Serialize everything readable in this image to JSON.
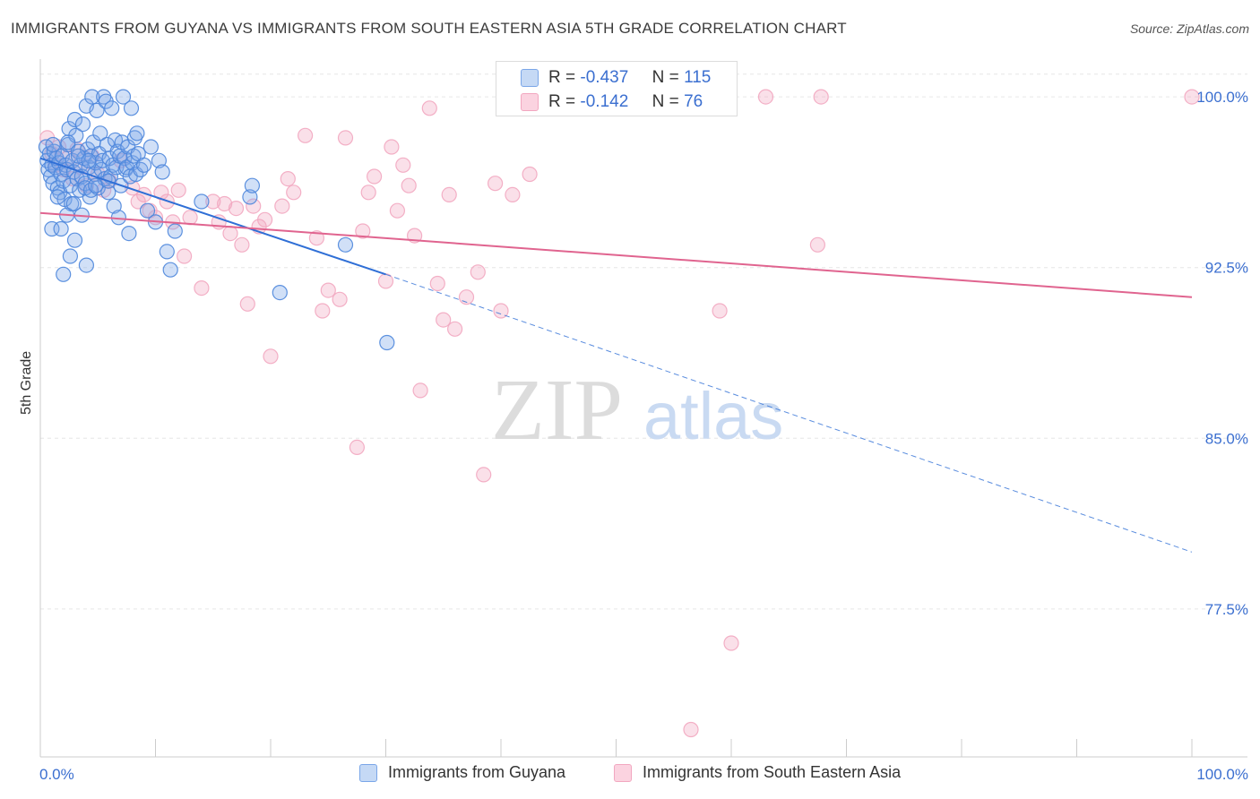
{
  "title": "IMMIGRANTS FROM GUYANA VS IMMIGRANTS FROM SOUTH EASTERN ASIA 5TH GRADE CORRELATION CHART",
  "source": "Source: ZipAtlas.com",
  "watermark": {
    "zip": "ZIP",
    "atlas": "atlas"
  },
  "stats_legend": {
    "rows": [
      {
        "r_label": "R =",
        "r_value": "-0.437",
        "n_label": "N =",
        "n_value": "115"
      },
      {
        "r_label": "R =",
        "r_value": "-0.142",
        "n_label": "N =",
        "n_value": "76"
      }
    ]
  },
  "chart_data": {
    "type": "scatter",
    "title": "IMMIGRANTS FROM GUYANA VS IMMIGRANTS FROM SOUTH EASTERN ASIA 5TH GRADE CORRELATION CHART",
    "xlabel": "",
    "ylabel": "5th Grade",
    "xlim": [
      0,
      100
    ],
    "ylim": [
      71,
      101.5
    ],
    "x_tick_labels": [
      "0.0%",
      "100.0%"
    ],
    "y_tick_labels": [
      "100.0%",
      "92.5%",
      "85.0%",
      "77.5%"
    ],
    "y_ticks": [
      100,
      92.5,
      85,
      77.5
    ],
    "grid": true,
    "legend_position": "bottom",
    "colors": {
      "guyana": "#7aa6e8",
      "sea": "#f2a7c0",
      "guyana_line": "#2f6fd6",
      "sea_line": "#e0648f",
      "value_text": "#3b6fd0"
    },
    "series": [
      {
        "name": "Immigrants from Guyana",
        "regression": {
          "x0": 0,
          "y0": 97.3,
          "x1": 30,
          "y1": 92.2,
          "dashed_to_x": 100,
          "dashed_to_y": 80.0
        },
        "points": [
          [
            0.5,
            97.8
          ],
          [
            0.6,
            97.2
          ],
          [
            0.7,
            96.8
          ],
          [
            0.8,
            97.5
          ],
          [
            0.9,
            96.5
          ],
          [
            1.0,
            97.0
          ],
          [
            1.1,
            96.2
          ],
          [
            1.2,
            97.6
          ],
          [
            1.3,
            96.9
          ],
          [
            1.4,
            97.3
          ],
          [
            1.5,
            96.0
          ],
          [
            1.6,
            97.1
          ],
          [
            1.7,
            95.8
          ],
          [
            1.8,
            96.6
          ],
          [
            1.9,
            97.4
          ],
          [
            2.0,
            96.3
          ],
          [
            2.1,
            95.5
          ],
          [
            2.2,
            97.0
          ],
          [
            2.3,
            96.8
          ],
          [
            2.4,
            97.9
          ],
          [
            2.5,
            98.6
          ],
          [
            2.6,
            96.1
          ],
          [
            2.7,
            95.3
          ],
          [
            2.8,
            97.2
          ],
          [
            2.9,
            96.7
          ],
          [
            3.0,
            99.0
          ],
          [
            3.1,
            98.3
          ],
          [
            3.2,
            96.4
          ],
          [
            3.3,
            97.6
          ],
          [
            3.4,
            95.9
          ],
          [
            3.5,
            97.0
          ],
          [
            3.6,
            96.5
          ],
          [
            3.7,
            98.8
          ],
          [
            3.8,
            97.3
          ],
          [
            3.9,
            96.2
          ],
          [
            4.0,
            99.6
          ],
          [
            4.1,
            97.7
          ],
          [
            4.2,
            96.9
          ],
          [
            4.3,
            95.6
          ],
          [
            4.4,
            97.4
          ],
          [
            4.5,
            100.0
          ],
          [
            4.6,
            98.0
          ],
          [
            4.7,
            96.6
          ],
          [
            4.8,
            97.1
          ],
          [
            4.9,
            99.4
          ],
          [
            5.0,
            96.0
          ],
          [
            5.1,
            97.5
          ],
          [
            5.2,
            98.4
          ],
          [
            5.3,
            96.8
          ],
          [
            5.4,
            97.2
          ],
          [
            5.5,
            100.0
          ],
          [
            5.6,
            96.4
          ],
          [
            5.7,
            99.8
          ],
          [
            5.8,
            97.9
          ],
          [
            5.9,
            95.8
          ],
          [
            6.0,
            97.3
          ],
          [
            6.1,
            96.5
          ],
          [
            6.2,
            99.5
          ],
          [
            6.3,
            97.0
          ],
          [
            6.4,
            95.2
          ],
          [
            6.5,
            98.1
          ],
          [
            6.6,
            96.9
          ],
          [
            6.7,
            97.6
          ],
          [
            6.8,
            94.7
          ],
          [
            6.9,
            97.4
          ],
          [
            7.0,
            96.1
          ],
          [
            7.1,
            98.0
          ],
          [
            7.2,
            100.0
          ],
          [
            7.3,
            97.3
          ],
          [
            7.4,
            96.8
          ],
          [
            7.5,
            96.9
          ],
          [
            7.6,
            97.8
          ],
          [
            7.7,
            94.0
          ],
          [
            7.8,
            96.5
          ],
          [
            7.9,
            99.5
          ],
          [
            8.0,
            97.1
          ],
          [
            8.1,
            97.4
          ],
          [
            8.2,
            98.2
          ],
          [
            8.3,
            96.6
          ],
          [
            8.4,
            98.4
          ],
          [
            8.5,
            97.5
          ],
          [
            8.7,
            96.8
          ],
          [
            9.0,
            97.0
          ],
          [
            9.3,
            95.0
          ],
          [
            9.6,
            97.8
          ],
          [
            10.0,
            94.5
          ],
          [
            10.3,
            97.2
          ],
          [
            10.6,
            96.7
          ],
          [
            11.0,
            93.2
          ],
          [
            11.3,
            92.4
          ],
          [
            11.7,
            94.1
          ],
          [
            1.0,
            94.2
          ],
          [
            1.8,
            94.2
          ],
          [
            2.3,
            94.8
          ],
          [
            2.6,
            93.0
          ],
          [
            3.0,
            93.7
          ],
          [
            2.0,
            92.2
          ],
          [
            4.0,
            92.6
          ],
          [
            3.6,
            94.8
          ],
          [
            1.5,
            95.6
          ],
          [
            2.9,
            95.3
          ],
          [
            3.9,
            96.0
          ],
          [
            4.4,
            95.9
          ],
          [
            4.8,
            96.1
          ],
          [
            5.9,
            96.3
          ],
          [
            14.0,
            95.4
          ],
          [
            18.2,
            95.6
          ],
          [
            18.4,
            96.1
          ],
          [
            20.8,
            91.4
          ],
          [
            26.5,
            93.5
          ],
          [
            30.1,
            89.2
          ],
          [
            1.1,
            97.9
          ],
          [
            2.4,
            98.0
          ],
          [
            3.3,
            97.4
          ],
          [
            4.2,
            97.2
          ]
        ]
      },
      {
        "name": "Immigrants from South Eastern Asia",
        "regression": {
          "x0": 0,
          "y0": 94.9,
          "x1": 100,
          "y1": 91.2
        },
        "points": [
          [
            0.6,
            98.2
          ],
          [
            1.0,
            97.5
          ],
          [
            1.3,
            97.0
          ],
          [
            1.6,
            97.8
          ],
          [
            2.0,
            96.8
          ],
          [
            2.4,
            97.3
          ],
          [
            2.8,
            96.4
          ],
          [
            3.2,
            97.7
          ],
          [
            3.6,
            96.9
          ],
          [
            4.0,
            96.1
          ],
          [
            4.5,
            97.4
          ],
          [
            5.0,
            96.6
          ],
          [
            5.5,
            95.9
          ],
          [
            6.0,
            96.3
          ],
          [
            7.0,
            97.2
          ],
          [
            8.0,
            96.0
          ],
          [
            8.5,
            95.4
          ],
          [
            9.0,
            95.7
          ],
          [
            9.5,
            95.0
          ],
          [
            10.0,
            94.7
          ],
          [
            10.5,
            95.8
          ],
          [
            11.0,
            95.4
          ],
          [
            11.5,
            94.5
          ],
          [
            12.0,
            95.9
          ],
          [
            12.5,
            93.0
          ],
          [
            13.0,
            94.7
          ],
          [
            14.0,
            91.6
          ],
          [
            15.0,
            95.4
          ],
          [
            15.5,
            94.5
          ],
          [
            16.0,
            95.3
          ],
          [
            16.5,
            94.0
          ],
          [
            17.0,
            95.1
          ],
          [
            17.5,
            93.5
          ],
          [
            18.0,
            90.9
          ],
          [
            18.5,
            95.2
          ],
          [
            19.0,
            94.3
          ],
          [
            19.5,
            94.6
          ],
          [
            20.0,
            88.6
          ],
          [
            21.0,
            95.2
          ],
          [
            21.5,
            96.4
          ],
          [
            22.0,
            95.8
          ],
          [
            23.0,
            98.3
          ],
          [
            24.0,
            93.8
          ],
          [
            24.5,
            90.6
          ],
          [
            25.0,
            91.5
          ],
          [
            26.0,
            91.1
          ],
          [
            26.5,
            98.2
          ],
          [
            27.5,
            84.6
          ],
          [
            28.0,
            94.1
          ],
          [
            28.5,
            95.8
          ],
          [
            29.0,
            96.5
          ],
          [
            30.0,
            91.9
          ],
          [
            30.5,
            97.8
          ],
          [
            31.0,
            95.0
          ],
          [
            31.5,
            97.0
          ],
          [
            32.0,
            96.1
          ],
          [
            32.5,
            93.9
          ],
          [
            33.0,
            87.1
          ],
          [
            33.8,
            99.5
          ],
          [
            34.5,
            91.8
          ],
          [
            35.0,
            90.2
          ],
          [
            35.5,
            95.7
          ],
          [
            36.0,
            89.8
          ],
          [
            37.0,
            91.2
          ],
          [
            38.0,
            92.3
          ],
          [
            38.5,
            83.4
          ],
          [
            39.5,
            96.2
          ],
          [
            40.0,
            90.6
          ],
          [
            41.0,
            95.7
          ],
          [
            42.5,
            96.6
          ],
          [
            56.5,
            72.2
          ],
          [
            59.0,
            90.6
          ],
          [
            60.0,
            76.0
          ],
          [
            63.0,
            100.0
          ],
          [
            67.5,
            93.5
          ],
          [
            67.8,
            100.0
          ],
          [
            100.0,
            100.0
          ]
        ]
      }
    ]
  },
  "legend": {
    "items": [
      {
        "label": "Immigrants from Guyana"
      },
      {
        "label": "Immigrants from South Eastern Asia"
      }
    ]
  }
}
